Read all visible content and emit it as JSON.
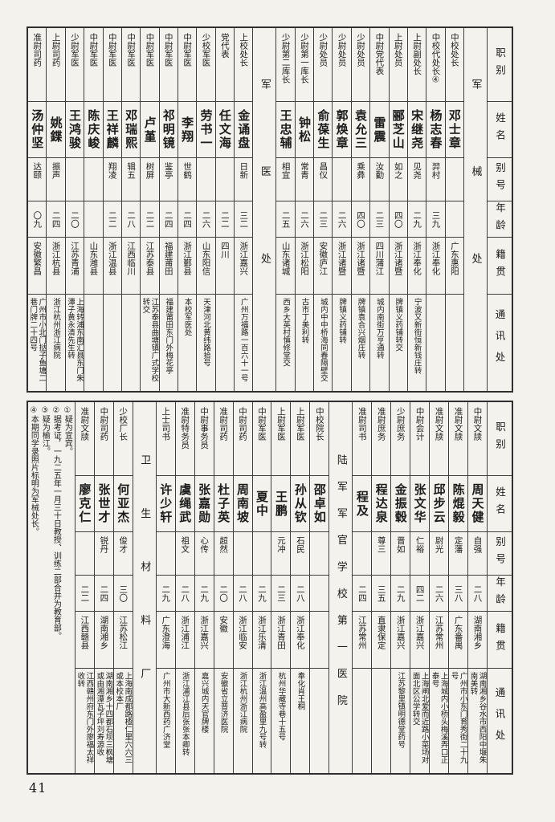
{
  "page": {
    "number": "41"
  },
  "columns_header": [
    "职别",
    "姓名",
    "别号",
    "年龄",
    "籍贯",
    "通讯处"
  ],
  "tables": [
    {
      "section": "top",
      "columns": [
        {
          "type": "header"
        },
        {
          "type": "divider",
          "label": "军械处"
        },
        {
          "type": "person",
          "title": "中校处长",
          "name": "邓士章",
          "alias": "",
          "age": "",
          "origin": "广东惠阳",
          "address": ""
        },
        {
          "type": "person",
          "title": "中校代处长④",
          "name": "杨志春",
          "alias": "羿村",
          "age": "三九",
          "origin": "浙江奉化",
          "address": ""
        },
        {
          "type": "person",
          "title": "上尉副处长",
          "name": "宋继尧",
          "alias": "见尧",
          "age": "二九",
          "origin": "浙江奉化",
          "address": "宁波又新街恒新钱庄转"
        },
        {
          "type": "person",
          "title": "上尉处员",
          "name": "郦芝山",
          "alias": "如之",
          "age": "四〇",
          "origin": "浙江诸暨",
          "address": "牌镇义药铺转交"
        },
        {
          "type": "person",
          "title": "中尉党代表",
          "name": "雷震",
          "alias": "汝勤",
          "age": "二三",
          "origin": "四川蒲江",
          "address": "城内南街万亨通转"
        },
        {
          "type": "person",
          "title": "少尉处员",
          "name": "袁允三",
          "alias": "乘彝",
          "age": "四〇",
          "origin": "浙江诸暨",
          "address": "牌镇袁合兴烟庄转"
        },
        {
          "type": "person",
          "title": "少尉处员",
          "name": "郭焕章",
          "alias": "",
          "age": "二六",
          "origin": "浙江诸暨",
          "address": "牌镇义药铺转"
        },
        {
          "type": "person",
          "title": "少尉处员",
          "name": "俞葆生",
          "alias": "昌仪",
          "age": "二三",
          "origin": "安徽庐江",
          "address": "城内中中桥海同春隔壁交"
        },
        {
          "type": "person",
          "title": "少尉第一库长",
          "name": "钟松",
          "alias": "常青",
          "age": "二六",
          "origin": "浙江松阳",
          "address": "古市丁美利转"
        },
        {
          "type": "person",
          "title": "少尉第二库长",
          "name": "王忠辅",
          "alias": "相宜",
          "age": "二五",
          "origin": "山东诸城",
          "address": "西乡大英村慎修堂交"
        },
        {
          "type": "divider",
          "label": "军医处"
        },
        {
          "type": "person",
          "title": "上校处长",
          "name": "金诵盘",
          "alias": "日新",
          "age": "三二",
          "origin": "浙江嘉兴",
          "address": "广州万福路一百六十一号"
        },
        {
          "type": "person",
          "title": "党代表",
          "name": "任文海",
          "alias": "",
          "age": "二二",
          "origin": "四川",
          "address": ""
        },
        {
          "type": "person",
          "title": "少校军医",
          "name": "劳书一",
          "alias": "",
          "age": "二六",
          "origin": "山东阳信",
          "address": "天津河北黄纬路拾号"
        },
        {
          "type": "person",
          "title": "中尉军医",
          "name": "李翔",
          "alias": "世鹤",
          "age": "二四",
          "origin": "浙江鄞县",
          "address": "本校军医处"
        },
        {
          "type": "person",
          "title": "中尉军医",
          "name": "祁明镜",
          "alias": "鉴亭",
          "age": "二四",
          "origin": "福建莆田",
          "address": "福建莆田东门外梅花亭"
        },
        {
          "type": "person",
          "title": "中尉军医",
          "name": "卢堇",
          "alias": "树屏",
          "age": "二二",
          "origin": "江苏泰县",
          "address": "江苏泰县曲塘镇广式学校转交"
        },
        {
          "type": "person",
          "title": "中尉军医",
          "name": "邓瑞熙",
          "alias": "辑五",
          "age": "二八",
          "origin": "江西临川",
          "address": ""
        },
        {
          "type": "person",
          "title": "中尉军医",
          "name": "王祥麟",
          "alias": "翔凌",
          "age": "二二",
          "origin": "浙江温县",
          "address": ""
        },
        {
          "type": "person",
          "title": "中尉军医",
          "name": "陈庆峻",
          "alias": "",
          "age": "",
          "origin": "山东潍县",
          "address": ""
        },
        {
          "type": "person",
          "title": "少尉军医",
          "name": "王鸿骏",
          "alias": "",
          "age": "二〇",
          "origin": "江苏青浦",
          "address": "上海转浦东南汇县东门朱潭子黄永清先生转"
        },
        {
          "type": "person",
          "title": "上尉司药",
          "name": "姚鍱",
          "alias": "振声",
          "age": "二四",
          "origin": "浙江杭县",
          "address": "浙江杭州浙江病院"
        },
        {
          "type": "person",
          "title": "准尉司药",
          "name": "汤仲坚",
          "alias": "达颐",
          "age": "〇九",
          "origin": "安徽繁昌",
          "address": "广州市小北门挞子鱼塘二巷门牌二十四号"
        }
      ]
    },
    {
      "section": "bottom",
      "columns": [
        {
          "type": "header"
        },
        {
          "type": "person",
          "title": "中尉文牍",
          "name": "周天健",
          "alias": "自强",
          "age": "二八",
          "origin": "湖南湘乡",
          "address": "湖南湘乡谷水市西阳中堰朱南美转"
        },
        {
          "type": "person",
          "title": "准尉文牍",
          "name": "陈焜毅",
          "alias": "定藩",
          "age": "三八",
          "origin": "广东番禺",
          "address": "广州市小东门育秀街二十九号"
        },
        {
          "type": "person",
          "title": "准尉文牍",
          "name": "邱步云",
          "alias": "尉光",
          "age": "二六",
          "origin": "江苏常州",
          "address": "上海城内小桥头梅溪弄口正泰号"
        },
        {
          "type": "person",
          "title": "中尉会计",
          "name": "张文华",
          "alias": "仁裕",
          "age": "四二",
          "origin": "浙江嘉兴",
          "address": "上海闸北爱而近路小菜场对面北区公学转交"
        },
        {
          "type": "person",
          "title": "少尉庶务",
          "name": "金振毂",
          "alias": "晋如",
          "age": "二九",
          "origin": "浙江嘉兴",
          "address": "江苏黎里镇明德堂药号"
        },
        {
          "type": "person",
          "title": "准尉庶务",
          "name": "程达泉",
          "alias": "尊三",
          "age": "三五",
          "origin": "直隶保定",
          "address": ""
        },
        {
          "type": "person",
          "title": "准尉司书",
          "name": "程及",
          "alias": "",
          "age": "二四",
          "origin": "江苏常州",
          "address": ""
        },
        {
          "type": "divider",
          "label": "陆军军官学校第一医院"
        },
        {
          "type": "person",
          "title": "中校院长",
          "name": "邵卓如",
          "alias": "",
          "age": "",
          "origin": "",
          "address": ""
        },
        {
          "type": "person",
          "title": "上尉军医",
          "name": "孙从钦",
          "alias": "石民",
          "age": "二八",
          "origin": "浙江奉化",
          "address": "奉化肖王桐"
        },
        {
          "type": "person",
          "title": "上尉军医",
          "name": "王鹏",
          "alias": "元冲",
          "age": "二三",
          "origin": "浙江青田",
          "address": "杭州华藏寺巷十五号"
        },
        {
          "type": "person",
          "title": "中尉军医",
          "name": "夏中",
          "alias": "",
          "age": "二九",
          "origin": "浙江乐清",
          "address": "浙江温州高盈里九号转"
        },
        {
          "type": "person",
          "title": "中尉司药",
          "name": "周南坡",
          "alias": "",
          "age": "二八",
          "origin": "浙江临安",
          "address": "浙江杭州浙江病院"
        },
        {
          "type": "person",
          "title": "准尉司药",
          "name": "杜子英",
          "alias": "超然",
          "age": "二〇",
          "origin": "安徽",
          "address": "安徽省立普济医院"
        },
        {
          "type": "person",
          "title": "中尉事务员",
          "name": "张嘉勋",
          "alias": "心传",
          "age": "二九",
          "origin": "浙江嘉兴",
          "address": "嘉兴城内天官牌楼"
        },
        {
          "type": "person",
          "title": "准尉特务员",
          "name": "虞绳武",
          "alias": "祖文",
          "age": "二八",
          "origin": "浙江浦江",
          "address": "浙江浦江县后张张本卿转"
        },
        {
          "type": "person",
          "title": "上士司书",
          "name": "许少轩",
          "alias": "",
          "age": "二九",
          "origin": "广东澄海",
          "address": "广州市大新西药广济堂"
        },
        {
          "type": "divider",
          "label": "卫生材料厂"
        },
        {
          "type": "person",
          "title": "少校厂长",
          "name": "何亚杰",
          "alias": "俊才",
          "age": "三〇",
          "origin": "江苏松江",
          "address": "上海南成都路楂仁里六六三或本校本厂"
        },
        {
          "type": "person",
          "title": "中尉司药",
          "name": "张世才",
          "alias": "锐丹",
          "age": "二四",
          "origin": "湖南湘乡",
          "address": "湖南湘乡十四都石坝三枫塘或由湘潭瓦子坪刘寿源收"
        },
        {
          "type": "person",
          "title": "准尉文牍",
          "name": "廖克仁",
          "alias": "",
          "age": "二二",
          "origin": "江西赣县",
          "address": "江西赣州府东门外廖福太祥收转"
        },
        {
          "type": "footnotes",
          "notes": [
            "①疑为宜宾。",
            "②据考证，一九二五年一月三十日教授、训练二部合并为教育部。",
            "③疑为榆江。",
            "④本期同学录照片标明为军械处长。"
          ]
        }
      ]
    }
  ]
}
